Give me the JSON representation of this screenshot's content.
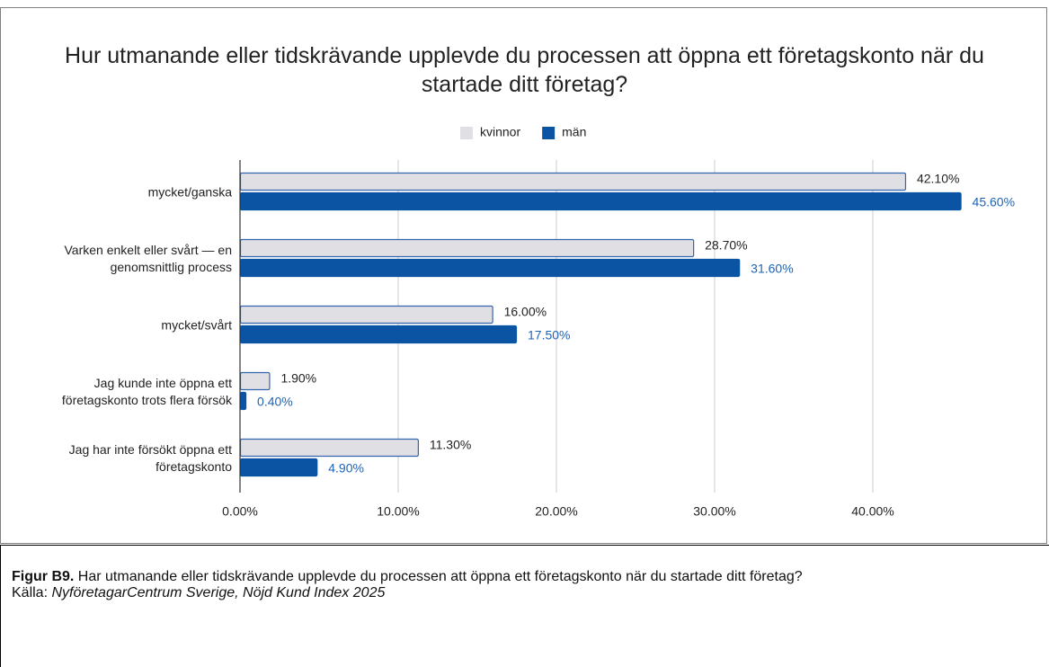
{
  "chart_data": {
    "type": "hbar",
    "title": "Hur utmanande eller tidskrävande upplevde du processen att öppna ett företagskonto när du startade ditt företag?",
    "categories": [
      "mycket/ganska",
      "Varken enkelt eller svårt — en genomsnittlig process",
      "mycket/svårt",
      "Jag kunde inte öppna ett företagskonto trots flera försök",
      "Jag har inte försökt öppna ett företagskonto"
    ],
    "series": [
      {
        "name": "kvinnor",
        "color": "#e0e0e4",
        "stroke": "#3565ad",
        "label_color": "#222222",
        "values": [
          42.1,
          28.7,
          16.0,
          1.9,
          11.3
        ],
        "value_labels": [
          "42.10%",
          "28.70%",
          "16.00%",
          "1.90%",
          "11.30%"
        ]
      },
      {
        "name": "män",
        "color": "#0b54a4",
        "stroke": "#0b54a4",
        "label_color": "#1f63b4",
        "values": [
          45.6,
          31.6,
          17.5,
          0.4,
          4.9
        ],
        "value_labels": [
          "45.60%",
          "31.60%",
          "17.50%",
          "0.40%",
          "4.90%"
        ]
      }
    ],
    "xlim": [
      0,
      50
    ],
    "xticks": [
      {
        "value": 0,
        "label": "0.00%"
      },
      {
        "value": 10,
        "label": "10.00%"
      },
      {
        "value": 20,
        "label": "20.00%"
      },
      {
        "value": 30,
        "label": "30.00%"
      },
      {
        "value": 40,
        "label": "40.00%"
      }
    ],
    "grid": true,
    "legend": "top"
  },
  "caption": {
    "label": "Figur B9.",
    "text": "Har utmanande eller tidskrävande upplevde du processen att öppna ett företagskonto när du startade ditt företag?",
    "source_label": "Källa:",
    "source": "NyföretagarCentrum Sverige, Nöjd Kund Index 2025"
  }
}
